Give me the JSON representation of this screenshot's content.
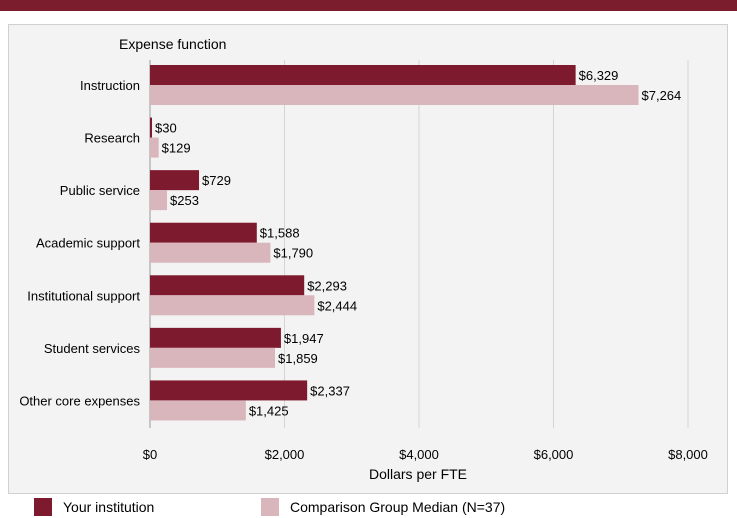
{
  "colors": {
    "brand": "#7b1d2c",
    "series_institution": "#7e1a2e",
    "series_median": "#d9b5bc",
    "panel_background": "#f3f3f3",
    "grid": "#d4d4d4"
  },
  "chart_data": {
    "type": "bar",
    "orientation": "horizontal",
    "category_axis_title": "Expense function",
    "xlabel": "Dollars per FTE",
    "categories": [
      "Instruction",
      "Research",
      "Public service",
      "Academic support",
      "Institutional support",
      "Student services",
      "Other core expenses"
    ],
    "series": [
      {
        "name": "Your institution",
        "values": [
          6329,
          30,
          729,
          1588,
          2293,
          1947,
          2337
        ],
        "labels": [
          "$6,329",
          "$30",
          "$729",
          "$1,588",
          "$2,293",
          "$1,947",
          "$2,337"
        ]
      },
      {
        "name": "Comparison Group Median (N=37)",
        "values": [
          7264,
          129,
          253,
          1790,
          2444,
          1859,
          1425
        ],
        "labels": [
          "$7,264",
          "$129",
          "$253",
          "$1,790",
          "$2,444",
          "$1,859",
          "$1,425"
        ]
      }
    ],
    "xlim": [
      0,
      8000
    ],
    "xticks": [
      0,
      2000,
      4000,
      6000,
      8000
    ],
    "xtick_labels": [
      "$0",
      "$2,000",
      "$4,000",
      "$6,000",
      "$8,000"
    ],
    "grid": true,
    "legend_position": "bottom"
  }
}
